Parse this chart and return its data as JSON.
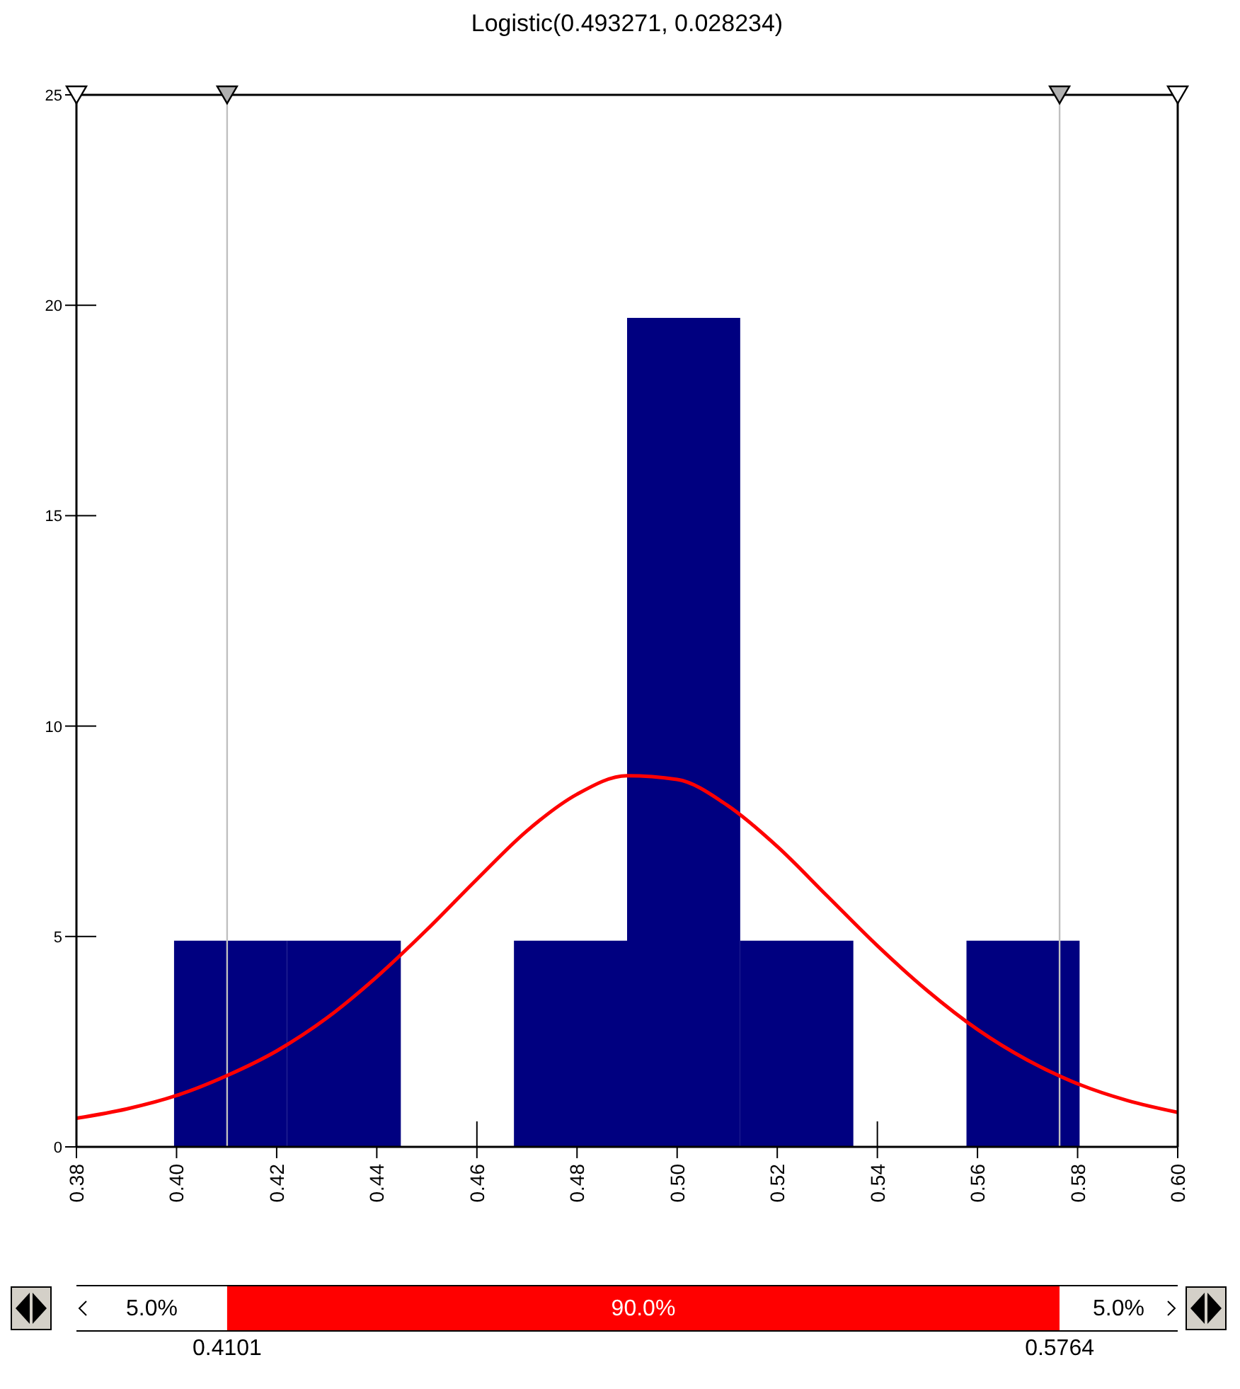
{
  "chart_data": {
    "type": "histogram",
    "title": "Logistic(0.493271, 0.028234)",
    "bins": [
      0.3995,
      0.4221,
      0.4448,
      0.4674,
      0.49,
      0.5126,
      0.5352,
      0.5578,
      0.5804
    ],
    "values": [
      4.9,
      4.9,
      0,
      4.9,
      19.7,
      4.9,
      0,
      4.9
    ],
    "color": "#000080",
    "series": [
      {
        "type": "line",
        "color": "#ff0000",
        "x": [
          0.38,
          0.39,
          0.4,
          0.41,
          0.42,
          0.43,
          0.44,
          0.45,
          0.46,
          0.47,
          0.48,
          0.49,
          0.5,
          0.51,
          0.52,
          0.53,
          0.54,
          0.55,
          0.56,
          0.57,
          0.58,
          0.59,
          0.6
        ],
        "values": [
          0.68,
          0.9,
          1.22,
          1.69,
          2.28,
          3.06,
          4.04,
          5.16,
          6.36,
          7.51,
          8.38,
          8.82,
          8.73,
          8.12,
          7.14,
          5.96,
          4.78,
          3.71,
          2.79,
          2.06,
          1.5,
          1.1,
          0.82
        ]
      }
    ],
    "xlim": [
      0.38,
      0.6
    ],
    "xticks": [
      {
        "value": 0.38,
        "label": "0.38"
      },
      {
        "value": 0.4,
        "label": "0.40"
      },
      {
        "value": 0.42,
        "label": "0.42"
      },
      {
        "value": 0.44,
        "label": "0.44"
      },
      {
        "value": 0.46,
        "label": "0.46"
      },
      {
        "value": 0.48,
        "label": "0.48"
      },
      {
        "value": 0.5,
        "label": "0.50"
      },
      {
        "value": 0.52,
        "label": "0.52"
      },
      {
        "value": 0.54,
        "label": "0.54"
      },
      {
        "value": 0.56,
        "label": "0.56"
      },
      {
        "value": 0.58,
        "label": "0.58"
      },
      {
        "value": 0.6,
        "label": "0.60"
      }
    ],
    "ylim": [
      0,
      25
    ],
    "yticks": [
      0,
      5,
      10,
      15,
      20,
      25
    ],
    "grid": false,
    "ref_lines": [
      {
        "axis": "x",
        "value": 0.4101,
        "color": "#c0c0c0"
      },
      {
        "axis": "x",
        "value": 0.5764,
        "color": "#c0c0c0"
      }
    ],
    "annotations": [
      "5.0%",
      "90.0%",
      "5.0%",
      "0.4101",
      "0.5764"
    ]
  }
}
